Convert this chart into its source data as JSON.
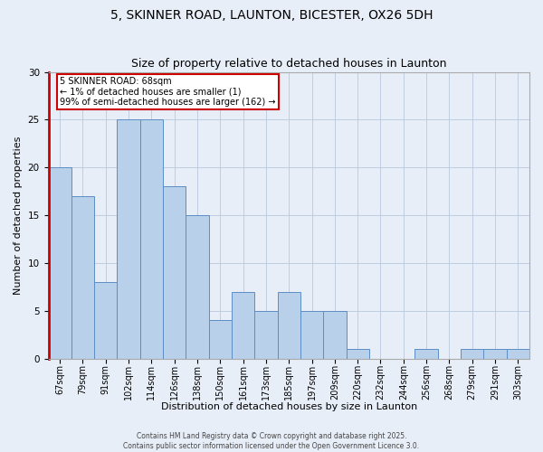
{
  "title1": "5, SKINNER ROAD, LAUNTON, BICESTER, OX26 5DH",
  "title2": "Size of property relative to detached houses in Launton",
  "xlabel": "Distribution of detached houses by size in Launton",
  "ylabel": "Number of detached properties",
  "categories": [
    "67sqm",
    "79sqm",
    "91sqm",
    "102sqm",
    "114sqm",
    "126sqm",
    "138sqm",
    "150sqm",
    "161sqm",
    "173sqm",
    "185sqm",
    "197sqm",
    "209sqm",
    "220sqm",
    "232sqm",
    "244sqm",
    "256sqm",
    "268sqm",
    "279sqm",
    "291sqm",
    "303sqm"
  ],
  "values": [
    20,
    17,
    8,
    25,
    25,
    18,
    15,
    4,
    7,
    5,
    7,
    5,
    5,
    1,
    0,
    0,
    1,
    0,
    1,
    1,
    1
  ],
  "bar_color": "#b8d0ea",
  "bar_edge_color": "#5b8ec4",
  "highlight_line_color": "#cc0000",
  "ylim": [
    0,
    30
  ],
  "yticks": [
    0,
    5,
    10,
    15,
    20,
    25,
    30
  ],
  "annotation_text": "5 SKINNER ROAD: 68sqm\n← 1% of detached houses are smaller (1)\n99% of semi-detached houses are larger (162) →",
  "annotation_box_color": "#ffffff",
  "annotation_box_edge_color": "#cc0000",
  "footer_text1": "Contains HM Land Registry data © Crown copyright and database right 2025.",
  "footer_text2": "Contains public sector information licensed under the Open Government Licence 3.0.",
  "background_color": "#e8eef8",
  "grid_color": "#c0cce0",
  "title_fontsize": 10,
  "subtitle_fontsize": 9,
  "tick_fontsize": 7,
  "ylabel_fontsize": 8,
  "xlabel_fontsize": 8,
  "footer_fontsize": 5.5
}
